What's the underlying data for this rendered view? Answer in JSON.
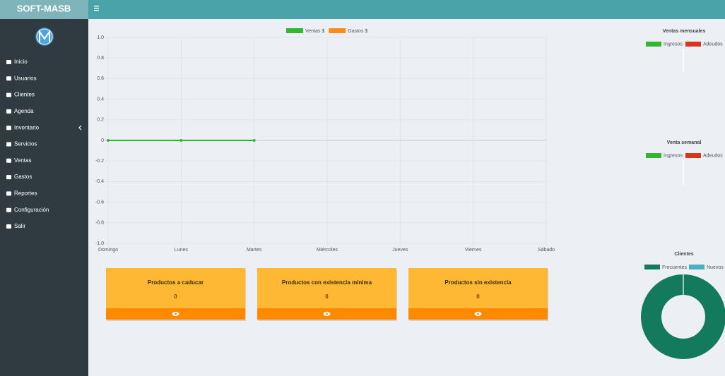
{
  "sidebar": {
    "brand": "SOFT-MASB",
    "menu": [
      "Inicio",
      "Usuarios",
      "Clientes",
      "Agenda",
      "Inventario",
      "Servicios",
      "Ventas",
      "Gastos",
      "Reportes",
      "Configuración",
      "Salir"
    ]
  },
  "cards": [
    {
      "title": "Productos a caducar",
      "value": 0
    },
    {
      "title": "Productos con existencia mínima",
      "value": 0
    },
    {
      "title": "Productos sin existencia",
      "value": 0
    }
  ],
  "chart_data": [
    {
      "type": "line",
      "x": [
        "Domingo",
        "Lunes",
        "Martes",
        "Miércoles",
        "Jueves",
        "Viernes",
        "Sábado"
      ],
      "series": [
        {
          "name": "Ventas $",
          "color": "#2db82d",
          "values": [
            0,
            0,
            0,
            null,
            null,
            null,
            null
          ]
        },
        {
          "name": "Gastos $",
          "color": "#ff8c1a",
          "values": [
            null,
            null,
            null,
            null,
            null,
            null,
            null
          ]
        }
      ],
      "ylim": [
        -1,
        1
      ],
      "yticks": [
        {
          "value": 1,
          "label": "1.0"
        },
        0.8,
        0.6,
        0.4,
        0.2,
        0,
        -0.2,
        -0.4,
        -0.6,
        -0.8,
        {
          "value": -1,
          "label": "-1.0"
        }
      ],
      "grid": true
    },
    {
      "type": "bar",
      "title": "Ventas mensuales",
      "series": [
        {
          "name": "Ingresos",
          "color": "#33b533",
          "values": []
        },
        {
          "name": "Adeudos",
          "color": "#d6361e",
          "values": []
        }
      ]
    },
    {
      "type": "bar",
      "title": "Venta semanal",
      "series": [
        {
          "name": "Ingresos",
          "color": "#33b533",
          "values": []
        },
        {
          "name": "Adeudos",
          "color": "#d6361e",
          "values": []
        }
      ]
    },
    {
      "type": "doughnut",
      "title": "Clientes",
      "categories": [
        "Frecuentes",
        "Nuevos"
      ],
      "values": [
        100,
        0
      ],
      "colors": [
        "#137a5e",
        "#4ab0c8"
      ]
    }
  ]
}
